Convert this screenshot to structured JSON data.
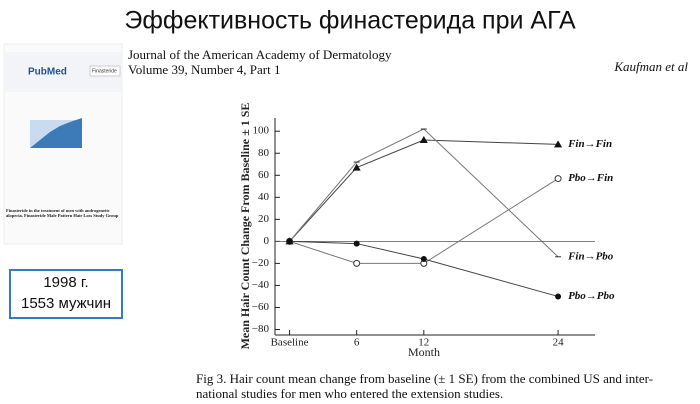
{
  "slide": {
    "title": "Эффективность финастерида при АГА",
    "journal": "Journal of the American Academy of Dermatology",
    "volume": "Volume 39, Number 4, Part 1",
    "authors": "Kaufman et al",
    "caption": [
      "Fig 3. Hair count mean change from baseline (± 1 SE) from the combined US and inter-",
      "national studies for men who entered the extension studies."
    ],
    "box": [
      "1998 г.",
      "1553 мужчин"
    ],
    "thumbnail": {
      "logo": "PubMed",
      "search": "Finasteride",
      "article": "Finasteride in the treatment of men with androgenetic alopecia. Finasteride Male Pattern Hair Loss Study Group"
    }
  },
  "chart_data": {
    "type": "line",
    "y_label": "Mean Hair Count Change From Baseline ± 1 SE",
    "x_label": "Month",
    "xlim": [
      -1.3,
      27.3
    ],
    "xticks": [
      {
        "value": 0,
        "label": "Baseline"
      },
      6,
      12,
      24
    ],
    "ylim": [
      -85,
      112
    ],
    "yticks": [
      {
        "value": -80,
        "label": "−80"
      },
      {
        "value": -60,
        "label": "−60"
      },
      {
        "value": -40,
        "label": "−40"
      },
      {
        "value": -20,
        "label": "−20"
      },
      0,
      20,
      40,
      60,
      80,
      100
    ],
    "x": [
      0,
      6,
      12,
      24
    ],
    "series": [
      {
        "name": "Fin→Fin",
        "color": "#444",
        "marker": "triangle",
        "values": [
          0,
          67,
          92,
          88
        ]
      },
      {
        "name": "Fin→Pbo",
        "color": "#777",
        "marker": "none",
        "values": [
          0,
          72,
          102,
          -14
        ]
      },
      {
        "name": "Pbo→Fin",
        "color": "#777",
        "marker": "circle-open",
        "values": [
          0,
          -20,
          -20,
          57
        ]
      },
      {
        "name": "Pbo→Pbo",
        "color": "#444",
        "marker": "circle",
        "values": [
          0,
          -2,
          -16,
          -50
        ]
      }
    ]
  }
}
